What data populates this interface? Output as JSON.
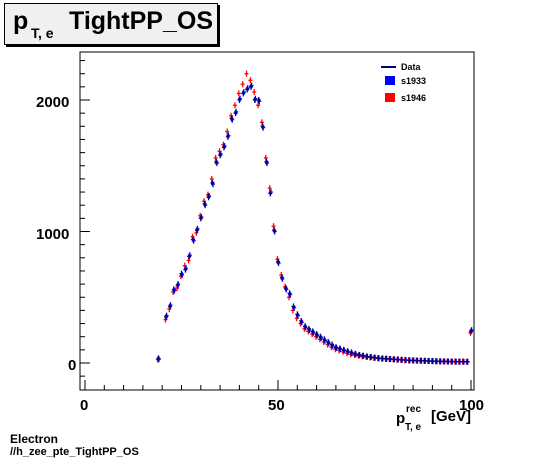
{
  "title": {
    "prefix": "p",
    "subscript": "T, e",
    "main": "TightPP_OS"
  },
  "footer": {
    "line1": "Electron",
    "line2": "//h_zee_pte_TightPP_OS"
  },
  "colors": {
    "data": "#000080",
    "s1933": "#0000ff",
    "s1946": "#ff0000"
  },
  "chart_data": {
    "type": "scatter",
    "xlabel": "p",
    "xlabel_sup": "rec",
    "xlabel_sub": "T, e",
    "xlabel_unit": "[GeV]",
    "xlim": [
      0,
      100
    ],
    "ylim": [
      -150,
      2350
    ],
    "xticks": [
      0,
      50,
      100
    ],
    "yticks": [
      0,
      1000,
      2000
    ],
    "legend_position": "top-right",
    "legend": [
      "Data",
      "s1933",
      "s1946"
    ],
    "x": [
      19,
      21,
      22,
      23,
      24,
      25,
      26,
      27,
      28,
      29,
      30,
      31,
      32,
      33,
      34,
      35,
      36,
      37,
      38,
      39,
      40,
      41,
      42,
      43,
      44,
      45,
      46,
      47,
      48,
      49,
      50,
      51,
      52,
      53,
      54,
      55,
      56,
      57,
      58,
      59,
      60,
      61,
      62,
      63,
      64,
      65,
      66,
      67,
      68,
      69,
      70,
      71,
      72,
      73,
      74,
      75,
      76,
      77,
      78,
      79,
      80,
      81,
      82,
      83,
      84,
      85,
      86,
      87,
      88,
      89,
      90,
      91,
      92,
      93,
      94,
      95,
      96,
      97,
      98,
      99,
      100
    ],
    "series": [
      {
        "name": "Data",
        "values": [
          35,
          350,
          430,
          560,
          590,
          680,
          710,
          810,
          940,
          1010,
          1100,
          1210,
          1260,
          1370,
          1530,
          1580,
          1640,
          1720,
          1860,
          1900,
          2000,
          2050,
          2080,
          2100,
          2000,
          2000,
          1800,
          1530,
          1290,
          1010,
          770,
          650,
          570,
          530,
          430,
          370,
          320,
          280,
          260,
          240,
          220,
          200,
          180,
          160,
          140,
          120,
          110,
          100,
          90,
          80,
          70,
          62,
          56,
          50,
          46,
          42,
          38,
          35,
          33,
          31,
          29,
          27,
          25,
          23,
          21,
          20,
          19,
          18,
          17,
          16,
          15,
          14,
          13,
          12,
          12,
          11,
          11,
          10,
          10,
          10,
          240
        ]
      },
      {
        "name": "s1933",
        "values": [
          30,
          360,
          440,
          550,
          600,
          670,
          720,
          820,
          930,
          1020,
          1110,
          1200,
          1270,
          1360,
          1520,
          1590,
          1650,
          1730,
          1850,
          1910,
          2010,
          2060,
          2090,
          2110,
          2010,
          1990,
          1790,
          1520,
          1300,
          1000,
          760,
          640,
          560,
          520,
          420,
          360,
          310,
          270,
          250,
          230,
          210,
          190,
          170,
          150,
          130,
          115,
          105,
          95,
          85,
          75,
          66,
          60,
          54,
          48,
          44,
          40,
          36,
          34,
          32,
          30,
          28,
          26,
          24,
          22,
          20,
          19,
          18,
          17,
          16,
          15,
          14,
          13,
          12,
          12,
          11,
          11,
          10,
          10,
          10,
          9,
          250
        ]
      },
      {
        "name": "s1946",
        "values": [
          25,
          330,
          410,
          540,
          570,
          660,
          740,
          780,
          960,
          990,
          1120,
          1230,
          1280,
          1400,
          1560,
          1610,
          1660,
          1760,
          1880,
          1960,
          2050,
          2120,
          2200,
          2150,
          2060,
          1960,
          1830,
          1560,
          1330,
          1040,
          790,
          670,
          580,
          500,
          400,
          340,
          300,
          260,
          240,
          220,
          200,
          180,
          160,
          140,
          120,
          105,
          95,
          85,
          75,
          65,
          60,
          55,
          50,
          45,
          42,
          38,
          35,
          33,
          31,
          29,
          27,
          25,
          23,
          21,
          20,
          19,
          18,
          17,
          16,
          15,
          14,
          13,
          12,
          12,
          11,
          11,
          10,
          10,
          10,
          9,
          230
        ]
      }
    ]
  }
}
